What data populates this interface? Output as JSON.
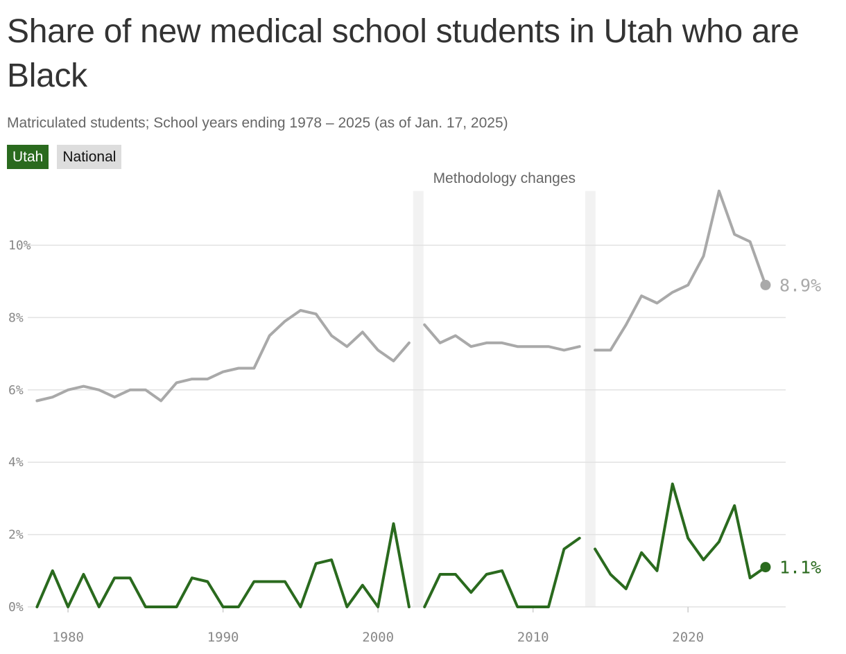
{
  "colors": {
    "utah": "#2a6a1e",
    "national": "#a9a9a9",
    "national_chip": "#dddddd",
    "grid": "#e2e2e2",
    "band": "#f2f2f2"
  },
  "chart_data": {
    "type": "line",
    "title": "Share of new medical school students in Utah who are Black",
    "subtitle": "Matriculated students; School years ending 1978 – 2025 (as of Jan. 17, 2025)",
    "xlim": [
      1977.4,
      2026.3
    ],
    "ylim": [
      0,
      11.5
    ],
    "y_ticks": [
      0,
      2,
      4,
      6,
      8,
      10
    ],
    "y_tick_labels": [
      "0%",
      "2%",
      "4%",
      "6%",
      "8%",
      "10%"
    ],
    "x_ticks": [
      1980,
      1990,
      2000,
      2010,
      2020
    ],
    "x_tick_labels": [
      "1980",
      "1990",
      "2000",
      "2010",
      "2020"
    ],
    "grid": "horizontal",
    "legend": "top-left",
    "annotations": [
      {
        "text": "Methodology changes",
        "bands": [
          2002.6,
          2013.7
        ]
      }
    ],
    "series": [
      {
        "name": "Utah",
        "end_label": "1.1%",
        "segments": [
          {
            "x": [
              1978,
              1979,
              1980,
              1981,
              1982,
              1983,
              1984,
              1985,
              1986,
              1987,
              1988,
              1989,
              1990,
              1991,
              1992,
              1993,
              1994,
              1995,
              1996,
              1997,
              1998,
              1999,
              2000,
              2001,
              2002
            ],
            "y": [
              0,
              1.0,
              0,
              0.9,
              0,
              0.8,
              0.8,
              0,
              0,
              0,
              0.8,
              0.7,
              0,
              0,
              0.7,
              0.7,
              0.7,
              0,
              1.2,
              1.3,
              0,
              0.6,
              0,
              2.3,
              0
            ]
          },
          {
            "x": [
              2003,
              2004,
              2005,
              2006,
              2007,
              2008,
              2009,
              2010,
              2011,
              2012,
              2013
            ],
            "y": [
              0,
              0.9,
              0.9,
              0.4,
              0.9,
              1.0,
              0,
              0,
              0,
              1.6,
              1.9
            ]
          },
          {
            "x": [
              2014,
              2015,
              2016,
              2017,
              2018,
              2019,
              2020,
              2021,
              2022,
              2023,
              2024,
              2025
            ],
            "y": [
              1.6,
              0.9,
              0.5,
              1.5,
              1.0,
              3.4,
              1.9,
              1.3,
              1.8,
              2.8,
              0.8,
              1.1
            ]
          }
        ]
      },
      {
        "name": "National",
        "end_label": "8.9%",
        "segments": [
          {
            "x": [
              1978,
              1979,
              1980,
              1981,
              1982,
              1983,
              1984,
              1985,
              1986,
              1987,
              1988,
              1989,
              1990,
              1991,
              1992,
              1993,
              1994,
              1995,
              1996,
              1997,
              1998,
              1999,
              2000,
              2001,
              2002
            ],
            "y": [
              5.7,
              5.8,
              6.0,
              6.1,
              6.0,
              5.8,
              6.0,
              6.0,
              5.7,
              6.2,
              6.3,
              6.3,
              6.5,
              6.6,
              6.6,
              7.5,
              7.9,
              8.2,
              8.1,
              7.5,
              7.2,
              7.6,
              7.1,
              6.8,
              7.3
            ]
          },
          {
            "x": [
              2003,
              2004,
              2005,
              2006,
              2007,
              2008,
              2009,
              2010,
              2011,
              2012,
              2013
            ],
            "y": [
              7.8,
              7.3,
              7.5,
              7.2,
              7.3,
              7.3,
              7.2,
              7.2,
              7.2,
              7.1,
              7.2
            ]
          },
          {
            "x": [
              2014,
              2015,
              2016,
              2017,
              2018,
              2019,
              2020,
              2021,
              2022,
              2023,
              2024,
              2025
            ],
            "y": [
              7.1,
              7.1,
              7.8,
              8.6,
              8.4,
              8.7,
              8.9,
              9.7,
              11.5,
              10.3,
              10.1,
              8.9
            ]
          }
        ]
      }
    ]
  }
}
